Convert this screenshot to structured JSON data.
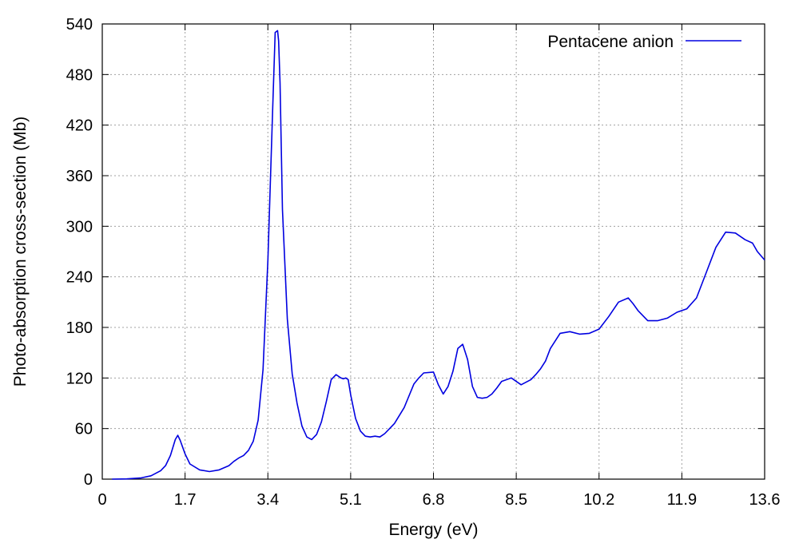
{
  "chart_data": {
    "type": "line",
    "xlabel": "Energy (eV)",
    "ylabel": "Photo-absorption cross-section (Mb)",
    "xlim": [
      0,
      13.6
    ],
    "ylim": [
      0,
      540
    ],
    "x_ticks": [
      0,
      1.7,
      3.4,
      5.1,
      6.8,
      8.5,
      10.2,
      11.9,
      13.6
    ],
    "x_tick_labels": [
      "0",
      "1.7",
      "3.4",
      "5.1",
      "6.8",
      "8.5",
      "10.2",
      "11.9",
      "13.6"
    ],
    "y_ticks": [
      0,
      60,
      120,
      180,
      240,
      300,
      360,
      420,
      480,
      540
    ],
    "y_tick_labels": [
      "0",
      "60",
      "120",
      "180",
      "240",
      "300",
      "360",
      "420",
      "480",
      "540"
    ],
    "grid": true,
    "legend_position": "top-right",
    "series": [
      {
        "name": "Pentacene anion",
        "color": "#0000e0",
        "x": [
          0.2,
          0.5,
          0.8,
          1.0,
          1.2,
          1.3,
          1.4,
          1.5,
          1.55,
          1.6,
          1.7,
          1.8,
          2.0,
          2.2,
          2.4,
          2.6,
          2.7,
          2.8,
          2.9,
          3.0,
          3.1,
          3.2,
          3.3,
          3.4,
          3.5,
          3.55,
          3.6,
          3.62,
          3.65,
          3.7,
          3.8,
          3.9,
          4.0,
          4.1,
          4.2,
          4.3,
          4.4,
          4.5,
          4.6,
          4.7,
          4.8,
          4.9,
          4.95,
          5.0,
          5.05,
          5.1,
          5.2,
          5.3,
          5.4,
          5.5,
          5.6,
          5.7,
          5.8,
          5.9,
          6.0,
          6.2,
          6.4,
          6.5,
          6.6,
          6.8,
          6.9,
          7.0,
          7.1,
          7.2,
          7.3,
          7.4,
          7.5,
          7.6,
          7.7,
          7.8,
          7.9,
          8.0,
          8.1,
          8.2,
          8.4,
          8.6,
          8.8,
          8.9,
          9.0,
          9.1,
          9.2,
          9.4,
          9.6,
          9.8,
          10.0,
          10.2,
          10.4,
          10.6,
          10.8,
          10.9,
          11.0,
          11.2,
          11.4,
          11.6,
          11.8,
          12.0,
          12.2,
          12.4,
          12.6,
          12.8,
          13.0,
          13.2,
          13.35,
          13.45,
          13.6
        ],
        "values": [
          0,
          0.3,
          1.5,
          4,
          10,
          16,
          28,
          47,
          52,
          46,
          30,
          18,
          11,
          9,
          11,
          16,
          21,
          25,
          28,
          34,
          45,
          70,
          130,
          260,
          440,
          530,
          532,
          520,
          470,
          320,
          190,
          125,
          90,
          63,
          50,
          47,
          53,
          68,
          92,
          118,
          124,
          120,
          119,
          120,
          118,
          100,
          72,
          57,
          51,
          50,
          51,
          50,
          54,
          60,
          66,
          85,
          113,
          120,
          126,
          127,
          112,
          101,
          110,
          128,
          155,
          160,
          142,
          110,
          97,
          96,
          97,
          101,
          108,
          116,
          120,
          112,
          118,
          124,
          131,
          140,
          155,
          173,
          175,
          172,
          173,
          178,
          193,
          210,
          215,
          208,
          200,
          188,
          188,
          191,
          198,
          202,
          215,
          245,
          275,
          293,
          292,
          284,
          280,
          270,
          260
        ]
      }
    ]
  }
}
